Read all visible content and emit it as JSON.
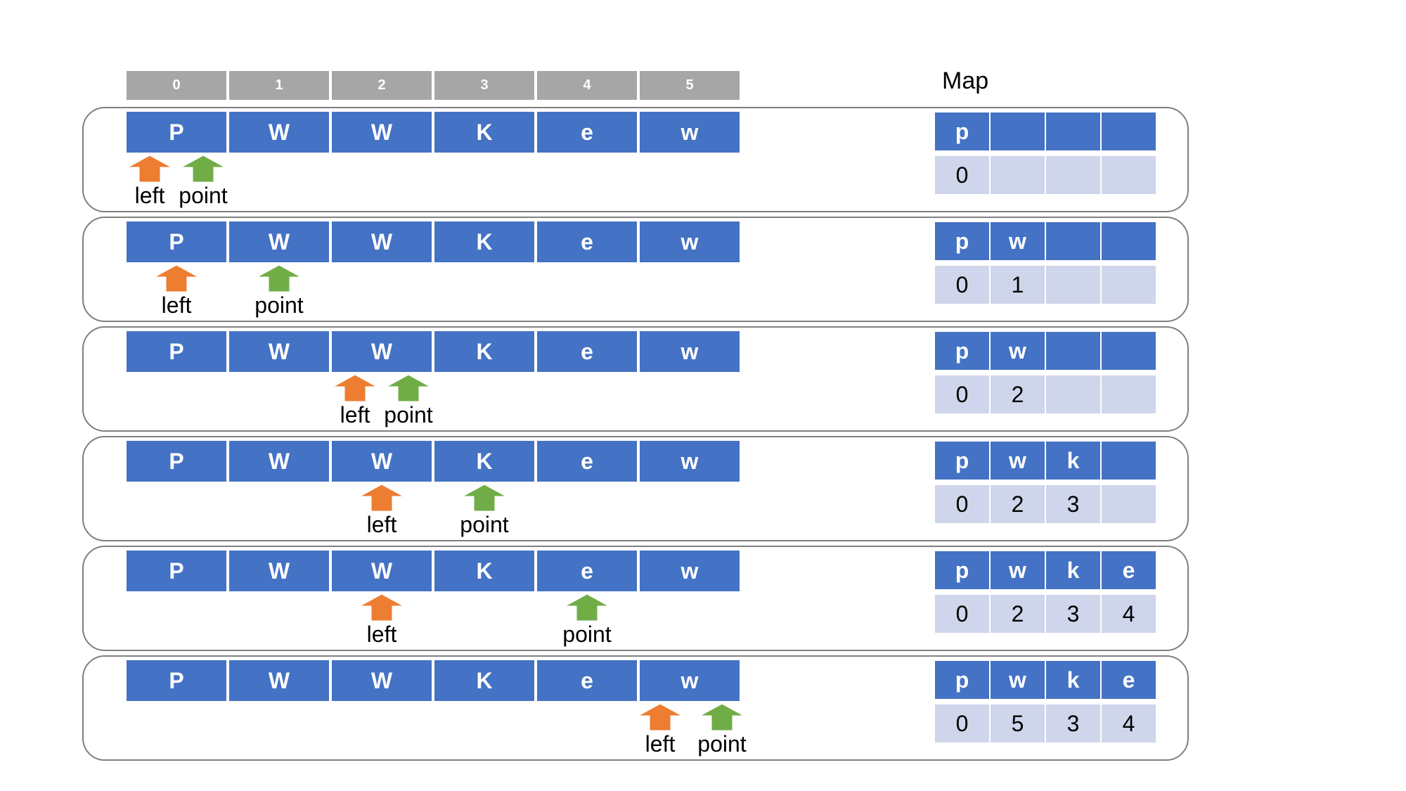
{
  "indices": [
    "0",
    "1",
    "2",
    "3",
    "4",
    "5"
  ],
  "map_title": "Map",
  "pointer_labels": {
    "left": "left",
    "point": "point"
  },
  "colors": {
    "cell": "#4472c4",
    "map_value": "#cfd5ea",
    "index_header": "#a6a6a6",
    "left_arrow": "#ed7d31",
    "point_arrow": "#70ad47",
    "border": "#7f7f7f"
  },
  "steps": [
    {
      "chars": [
        "P",
        "W",
        "W",
        "K",
        "e",
        "w"
      ],
      "left_index": 0,
      "point_index": 0,
      "map_keys": [
        "p",
        "",
        "",
        ""
      ],
      "map_values": [
        "0",
        "",
        "",
        ""
      ]
    },
    {
      "chars": [
        "P",
        "W",
        "W",
        "K",
        "e",
        "w"
      ],
      "left_index": 0,
      "point_index": 1,
      "map_keys": [
        "p",
        "w",
        "",
        ""
      ],
      "map_values": [
        "0",
        "1",
        "",
        ""
      ]
    },
    {
      "chars": [
        "P",
        "W",
        "W",
        "K",
        "e",
        "w"
      ],
      "left_index": 2,
      "point_index": 2,
      "map_keys": [
        "p",
        "w",
        "",
        ""
      ],
      "map_values": [
        "0",
        "2",
        "",
        ""
      ]
    },
    {
      "chars": [
        "P",
        "W",
        "W",
        "K",
        "e",
        "w"
      ],
      "left_index": 2,
      "point_index": 3,
      "map_keys": [
        "p",
        "w",
        "k",
        ""
      ],
      "map_values": [
        "0",
        "2",
        "3",
        ""
      ]
    },
    {
      "chars": [
        "P",
        "W",
        "W",
        "K",
        "e",
        "w"
      ],
      "left_index": 2,
      "point_index": 4,
      "map_keys": [
        "p",
        "w",
        "k",
        "e"
      ],
      "map_values": [
        "0",
        "2",
        "3",
        "4"
      ]
    },
    {
      "chars": [
        "P",
        "W",
        "W",
        "K",
        "e",
        "w"
      ],
      "left_index": 5,
      "point_index": 5,
      "map_keys": [
        "p",
        "w",
        "k",
        "e"
      ],
      "map_values": [
        "0",
        "5",
        "3",
        "4"
      ]
    }
  ]
}
